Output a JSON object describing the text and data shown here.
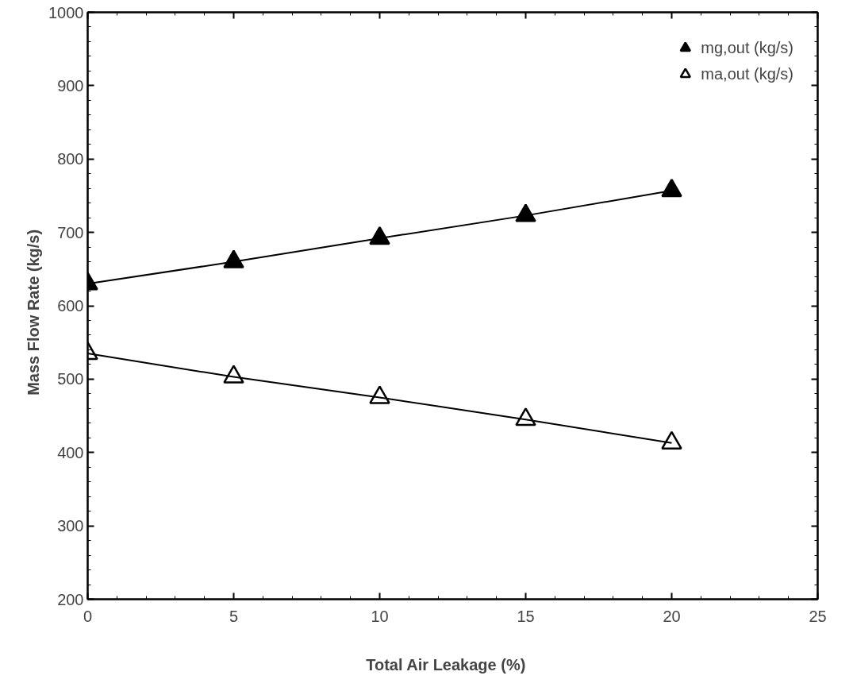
{
  "chart_data": {
    "type": "line",
    "xlabel": "Total  Air  Leakage  (%)",
    "ylabel": "Mass  Flow  Rate  (kg/s)",
    "x": [
      0,
      5,
      10,
      15,
      20
    ],
    "series": [
      {
        "name": "mg,out (kg/s)",
        "color": "#000000",
        "values": [
          630,
          660,
          692,
          723,
          757
        ]
      },
      {
        "name": "ma,out (kg/s)",
        "color": "#000000",
        "values": [
          535,
          503,
          475,
          445,
          413
        ]
      }
    ],
    "xlim": [
      0,
      25
    ],
    "xticks": [
      0,
      5,
      10,
      15,
      20,
      25
    ],
    "ylim": [
      200,
      1000
    ],
    "yticks": [
      200,
      300,
      400,
      500,
      600,
      700,
      800,
      900,
      1000
    ],
    "grid": false,
    "legend": "top right",
    "marker": "triangle",
    "line_style": "solid"
  }
}
